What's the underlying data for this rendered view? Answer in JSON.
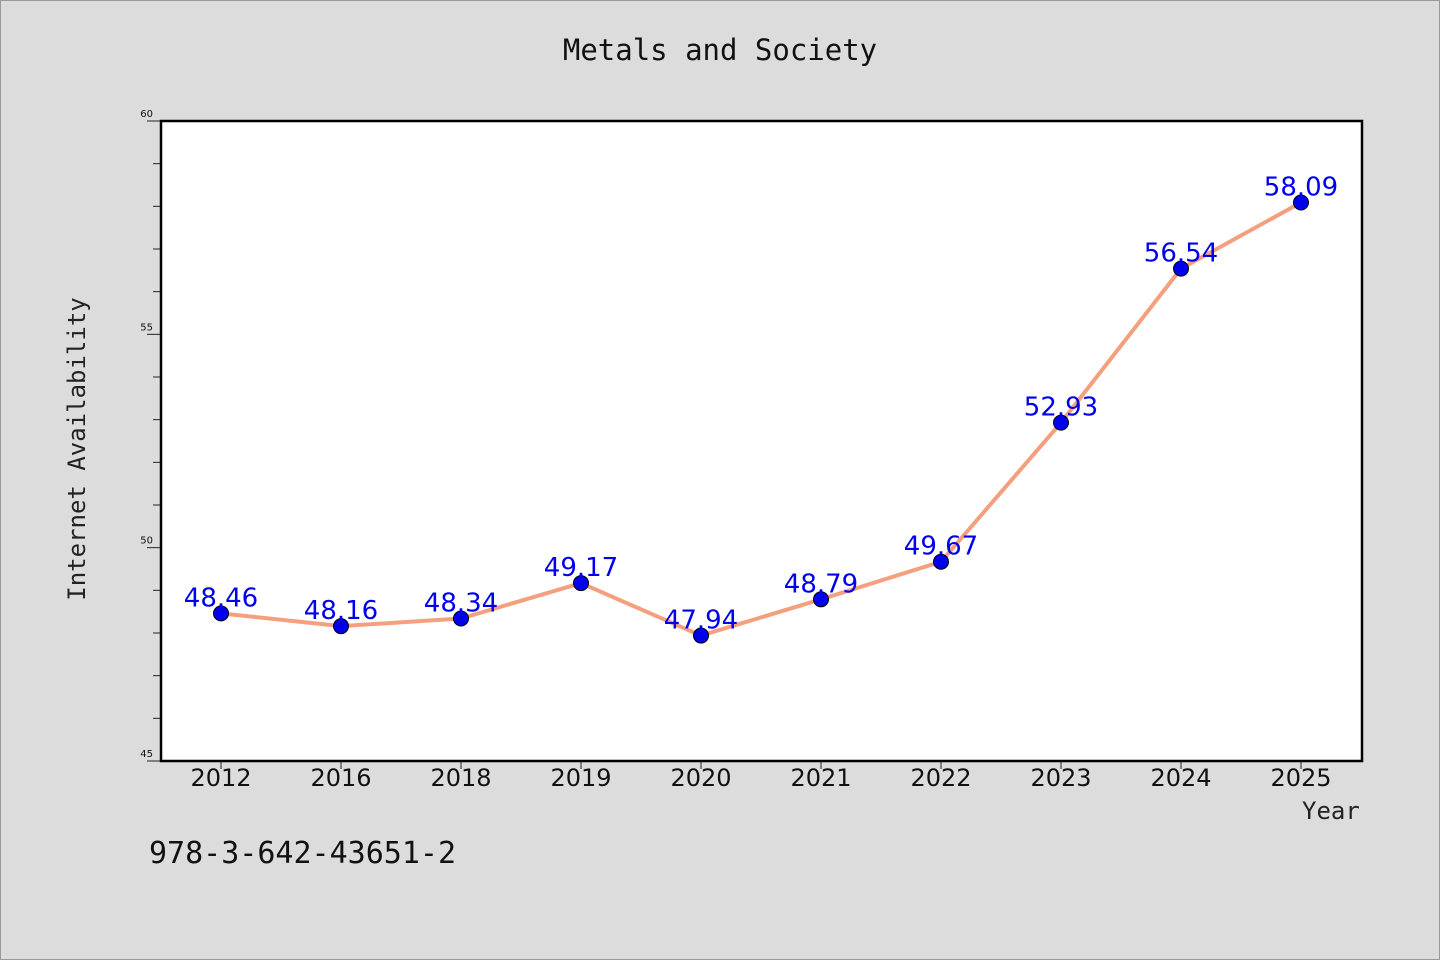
{
  "chart_data": {
    "type": "line",
    "title": "Metals and Society",
    "xlabel": "Year",
    "ylabel": "Internet Availability",
    "categories": [
      "2012",
      "2016",
      "2018",
      "2019",
      "2020",
      "2021",
      "2022",
      "2023",
      "2024",
      "2025"
    ],
    "series": [
      {
        "values": [
          48.46,
          48.16,
          48.34,
          49.17,
          47.94,
          48.79,
          49.67,
          52.93,
          56.54,
          58.09
        ],
        "labels": [
          "48.46",
          "48.16",
          "48.34",
          "49.17",
          "47.94",
          "48.79",
          "49.67",
          "52.93",
          "56.54",
          "58.09"
        ]
      }
    ],
    "ylim": [
      45,
      60
    ],
    "y_major_ticks": [
      "45",
      "50",
      "55",
      "60"
    ],
    "y_minor_step": 1,
    "grid": false,
    "line_color": "#f4a07e",
    "marker_color": "#0000ee",
    "label_color": "#0000ee",
    "background_color": "#dcdcdc",
    "plot_background": "#ffffff"
  },
  "footer": {
    "isbn": "978-3-642-43651-2"
  }
}
